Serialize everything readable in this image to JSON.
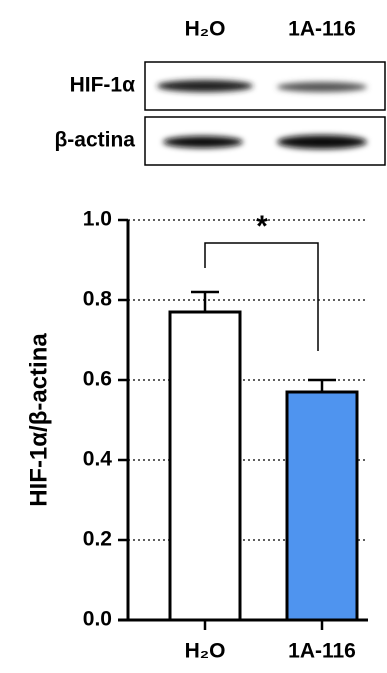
{
  "blot": {
    "columns": [
      "H₂O",
      "1A-116"
    ],
    "rows": [
      "HIF-1α",
      "β-actina"
    ]
  },
  "chart_data": {
    "type": "bar",
    "y_label": "HIF-1α/β-actina",
    "categories": [
      "H₂O",
      "1A-116"
    ],
    "values": [
      0.77,
      0.57
    ],
    "errors": [
      0.05,
      0.03
    ],
    "colors": [
      "#ffffff",
      "#4f94ef"
    ],
    "ylim": [
      0,
      1
    ],
    "yticks": [
      {
        "value": 0,
        "label": "0.0"
      },
      0.2,
      0.4,
      0.6,
      0.8,
      {
        "value": 1,
        "label": "1.0"
      }
    ],
    "grid": true,
    "annotation": "*"
  }
}
